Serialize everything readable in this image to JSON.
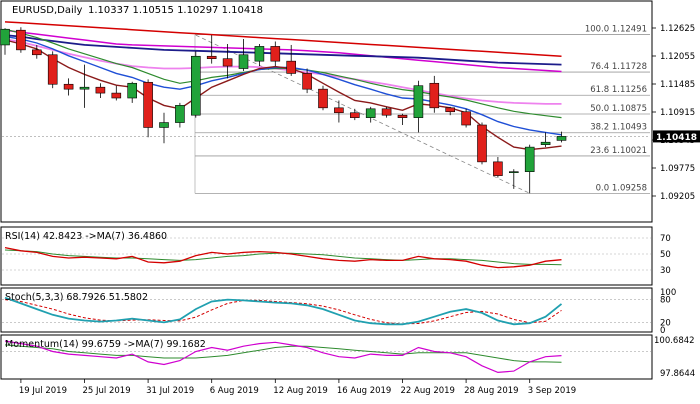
{
  "header": {
    "symbol": "EURUSD,Daily",
    "ohlc": "1.10337 1.10515 1.10297 1.10418"
  },
  "colors": {
    "bull": "#21a33a",
    "bear": "#e0201b",
    "sma_red": "#d40000",
    "sma_navy": "#1c1c8a",
    "sma_magenta": "#d000d0",
    "sma_pink": "#ee82ee",
    "ema_blue": "#1f4fd6",
    "ema_darkred": "#8b1a1a",
    "green_line": "#2e8b2e",
    "fib": "#9a9a9a"
  },
  "price_axis": {
    "ticks": [
      "1.12625",
      "1.12055",
      "1.11485",
      "1.10915",
      "1.10345",
      "1.09775",
      "1.09205"
    ],
    "current_price": "1.10418"
  },
  "fib_levels": [
    {
      "label": "100.0 1.12491",
      "price": 1.12491
    },
    {
      "label": "76.4 1.11728",
      "price": 1.11728
    },
    {
      "label": "61.8 1.11256",
      "price": 1.11256
    },
    {
      "label": "50.0 1.10875",
      "price": 1.10875
    },
    {
      "label": "38.2 1.10493",
      "price": 1.10493
    },
    {
      "label": "23.6 1.10021",
      "price": 1.10021
    },
    {
      "label": "0.0 1.09258",
      "price": 1.09258
    }
  ],
  "date_labels": [
    "19 Jul 2019",
    "25 Jul 2019",
    "31 Jul 2019",
    "6 Aug 2019",
    "12 Aug 2019",
    "16 Aug 2019",
    "22 Aug 2019",
    "28 Aug 2019",
    "3 Sep 2019"
  ],
  "candles": [
    {
      "d": "2019-07-18",
      "o": 1.1228,
      "h": 1.1262,
      "l": 1.1208,
      "c": 1.126
    },
    {
      "d": "2019-07-19",
      "o": 1.1258,
      "h": 1.1264,
      "l": 1.1212,
      "c": 1.1218
    },
    {
      "d": "2019-07-22",
      "o": 1.1218,
      "h": 1.1228,
      "l": 1.12,
      "c": 1.1208
    },
    {
      "d": "2019-07-23",
      "o": 1.1208,
      "h": 1.1215,
      "l": 1.114,
      "c": 1.1148
    },
    {
      "d": "2019-07-24",
      "o": 1.1148,
      "h": 1.116,
      "l": 1.1125,
      "c": 1.1138
    },
    {
      "d": "2019-07-25",
      "o": 1.1138,
      "h": 1.1188,
      "l": 1.11,
      "c": 1.1142
    },
    {
      "d": "2019-07-26",
      "o": 1.1142,
      "h": 1.115,
      "l": 1.112,
      "c": 1.113
    },
    {
      "d": "2019-07-29",
      "o": 1.113,
      "h": 1.1145,
      "l": 1.1115,
      "c": 1.112
    },
    {
      "d": "2019-07-30",
      "o": 1.112,
      "h": 1.1153,
      "l": 1.111,
      "c": 1.115
    },
    {
      "d": "2019-07-31",
      "o": 1.1152,
      "h": 1.1158,
      "l": 1.104,
      "c": 1.106
    },
    {
      "d": "2019-08-01",
      "o": 1.106,
      "h": 1.109,
      "l": 1.1028,
      "c": 1.107
    },
    {
      "d": "2019-08-02",
      "o": 1.107,
      "h": 1.111,
      "l": 1.106,
      "c": 1.1105
    },
    {
      "d": "2019-08-05",
      "o": 1.1085,
      "h": 1.1215,
      "l": 1.108,
      "c": 1.1205
    },
    {
      "d": "2019-08-06",
      "o": 1.1205,
      "h": 1.1248,
      "l": 1.119,
      "c": 1.12
    },
    {
      "d": "2019-08-07",
      "o": 1.12,
      "h": 1.123,
      "l": 1.116,
      "c": 1.1185
    },
    {
      "d": "2019-08-08",
      "o": 1.118,
      "h": 1.124,
      "l": 1.1175,
      "c": 1.1208
    },
    {
      "d": "2019-08-09",
      "o": 1.1195,
      "h": 1.123,
      "l": 1.1185,
      "c": 1.1225
    },
    {
      "d": "2019-08-12",
      "o": 1.1225,
      "h": 1.1235,
      "l": 1.1185,
      "c": 1.1195
    },
    {
      "d": "2019-08-13",
      "o": 1.1195,
      "h": 1.1228,
      "l": 1.1165,
      "c": 1.117
    },
    {
      "d": "2019-08-14",
      "o": 1.117,
      "h": 1.118,
      "l": 1.113,
      "c": 1.1138
    },
    {
      "d": "2019-08-15",
      "o": 1.1138,
      "h": 1.1145,
      "l": 1.1095,
      "c": 1.11
    },
    {
      "d": "2019-08-16",
      "o": 1.11,
      "h": 1.1115,
      "l": 1.107,
      "c": 1.109
    },
    {
      "d": "2019-08-19",
      "o": 1.109,
      "h": 1.1098,
      "l": 1.1075,
      "c": 1.108
    },
    {
      "d": "2019-08-20",
      "o": 1.108,
      "h": 1.1102,
      "l": 1.107,
      "c": 1.1098
    },
    {
      "d": "2019-08-21",
      "o": 1.1098,
      "h": 1.1102,
      "l": 1.108,
      "c": 1.1085
    },
    {
      "d": "2019-08-22",
      "o": 1.1085,
      "h": 1.1088,
      "l": 1.1065,
      "c": 1.108
    },
    {
      "d": "2019-08-23",
      "o": 1.108,
      "h": 1.1155,
      "l": 1.105,
      "c": 1.1145
    },
    {
      "d": "2019-08-26",
      "o": 1.115,
      "h": 1.1165,
      "l": 1.109,
      "c": 1.11
    },
    {
      "d": "2019-08-27",
      "o": 1.11,
      "h": 1.1102,
      "l": 1.1085,
      "c": 1.1092
    },
    {
      "d": "2019-08-28",
      "o": 1.1092,
      "h": 1.1098,
      "l": 1.106,
      "c": 1.1065
    },
    {
      "d": "2019-08-29",
      "o": 1.1065,
      "h": 1.107,
      "l": 1.0985,
      "c": 1.099
    },
    {
      "d": "2019-08-30",
      "o": 1.099,
      "h": 1.1,
      "l": 1.0958,
      "c": 1.0962
    },
    {
      "d": "2019-09-02",
      "o": 1.0968,
      "h": 1.0975,
      "l": 1.0935,
      "c": 1.097
    },
    {
      "d": "2019-09-03",
      "o": 1.097,
      "h": 1.1025,
      "l": 1.0926,
      "c": 1.102
    },
    {
      "d": "2019-09-04",
      "o": 1.1025,
      "h": 1.105,
      "l": 1.102,
      "c": 1.103
    },
    {
      "d": "2019-09-05",
      "o": 1.10337,
      "h": 1.10515,
      "l": 1.10297,
      "c": 1.10418
    }
  ],
  "overlays": {
    "sma_red": [
      1.1275,
      1.1273,
      1.1271,
      1.1269,
      1.1267,
      1.1265,
      1.1263,
      1.1261,
      1.1259,
      1.1257,
      1.1255,
      1.1253,
      1.1251,
      1.1249,
      1.1247,
      1.1245,
      1.1243,
      1.1241,
      1.1239,
      1.1237,
      1.1235,
      1.1233,
      1.1231,
      1.1229,
      1.1227,
      1.1225,
      1.1223,
      1.1221,
      1.1219,
      1.1217,
      1.1215,
      1.1213,
      1.1211,
      1.1209,
      1.1207,
      1.1205
    ],
    "sma_navy": [
      1.1248,
      1.1245,
      1.124,
      1.1236,
      1.1232,
      1.1228,
      1.1226,
      1.1224,
      1.1222,
      1.122,
      1.1218,
      1.1217,
      1.1216,
      1.1215,
      1.1214,
      1.1213,
      1.1212,
      1.1211,
      1.121,
      1.1209,
      1.1208,
      1.1207,
      1.1206,
      1.1205,
      1.1204,
      1.1203,
      1.1202,
      1.12,
      1.1198,
      1.1196,
      1.1194,
      1.1192,
      1.1191,
      1.119,
      1.1189,
      1.1188
    ],
    "sma_magenta": [
      1.1258,
      1.1254,
      1.125,
      1.1246,
      1.1242,
      1.1238,
      1.1234,
      1.123,
      1.1228,
      1.1227,
      1.1226,
      1.1225,
      1.1224,
      1.1223,
      1.1222,
      1.1221,
      1.122,
      1.1219,
      1.1218,
      1.1216,
      1.1214,
      1.1212,
      1.1209,
      1.1206,
      1.1203,
      1.12,
      1.1197,
      1.1194,
      1.1191,
      1.1188,
      1.1185,
      1.1182,
      1.118,
      1.1178,
      1.1176,
      1.1174
    ],
    "sma_pink": [
      1.124,
      1.1234,
      1.1226,
      1.1218,
      1.121,
      1.1203,
      1.1196,
      1.119,
      1.1185,
      1.1182,
      1.118,
      1.118,
      1.1181,
      1.1183,
      1.1184,
      1.1184,
      1.1183,
      1.118,
      1.1176,
      1.1172,
      1.1168,
      1.1163,
      1.1158,
      1.1153,
      1.1148,
      1.1142,
      1.1136,
      1.113,
      1.1124,
      1.1119,
      1.1115,
      1.1112,
      1.111,
      1.1109,
      1.1108,
      1.1108
    ],
    "ema_blue": [
      1.1245,
      1.124,
      1.1232,
      1.122,
      1.1206,
      1.1194,
      1.1182,
      1.117,
      1.1162,
      1.115,
      1.1142,
      1.1138,
      1.1145,
      1.1155,
      1.1162,
      1.117,
      1.1178,
      1.1182,
      1.1182,
      1.1177,
      1.1168,
      1.1158,
      1.1147,
      1.1138,
      1.1128,
      1.112,
      1.1118,
      1.1112,
      1.1106,
      1.1098,
      1.1086,
      1.1072,
      1.1062,
      1.1055,
      1.105,
      1.1045
    ],
    "ema_darkred": [
      1.1238,
      1.123,
      1.122,
      1.12,
      1.1182,
      1.1168,
      1.1156,
      1.1146,
      1.1142,
      1.112,
      1.1105,
      1.1098,
      1.112,
      1.1142,
      1.1155,
      1.1168,
      1.118,
      1.1184,
      1.118,
      1.1168,
      1.115,
      1.1132,
      1.1115,
      1.111,
      1.1102,
      1.1095,
      1.1108,
      1.1105,
      1.11,
      1.109,
      1.1062,
      1.104,
      1.102,
      1.1015,
      1.1018,
      1.1022
    ],
    "green_line": [
      1.126,
      1.1252,
      1.1243,
      1.1232,
      1.122,
      1.121,
      1.12,
      1.119,
      1.1182,
      1.117,
      1.1158,
      1.115,
      1.1155,
      1.1162,
      1.1166,
      1.1172,
      1.1178,
      1.118,
      1.118,
      1.1177,
      1.1172,
      1.1165,
      1.1158,
      1.115,
      1.1143,
      1.1137,
      1.1133,
      1.1127,
      1.1122,
      1.1116,
      1.1108,
      1.11,
      1.1093,
      1.1088,
      1.1084,
      1.108
    ]
  },
  "trendline": {
    "from": {
      "i": 12,
      "price": 1.1248
    },
    "to": {
      "i": 33,
      "price": 1.0926
    }
  },
  "rsi": {
    "label": "RSI(14) 42.8423  ->MA(7) 36.4860",
    "ticks": [
      "70",
      "50",
      "30"
    ],
    "rsi": [
      58,
      54,
      52,
      47,
      45,
      46,
      45,
      44,
      47,
      40,
      39,
      41,
      48,
      52,
      50,
      52,
      53,
      52,
      50,
      47,
      44,
      42,
      41,
      43,
      42,
      42,
      47,
      44,
      43,
      41,
      36,
      33,
      34,
      36,
      41,
      42.84
    ],
    "ma": [
      55,
      54,
      53,
      50,
      48,
      47,
      46,
      45,
      45,
      44,
      43,
      42,
      43,
      45,
      47,
      48,
      50,
      51,
      51,
      50,
      49,
      47,
      45,
      44,
      43,
      42,
      43,
      44,
      44,
      43,
      42,
      40,
      38,
      37,
      37,
      36.49
    ]
  },
  "stoch": {
    "label": "Stoch(5,3,3) 68.7926 51.5802",
    "ticks": [
      "100",
      "80",
      "20",
      "0"
    ],
    "k": [
      85,
      70,
      55,
      40,
      30,
      25,
      22,
      25,
      30,
      25,
      20,
      28,
      55,
      75,
      80,
      78,
      75,
      72,
      70,
      65,
      55,
      40,
      25,
      18,
      15,
      15,
      22,
      35,
      48,
      55,
      45,
      25,
      15,
      18,
      35,
      68.79
    ],
    "d": [
      80,
      75,
      65,
      55,
      42,
      32,
      26,
      24,
      26,
      27,
      25,
      24,
      34,
      53,
      70,
      78,
      78,
      75,
      72,
      69,
      63,
      53,
      40,
      28,
      19,
      16,
      17,
      24,
      35,
      46,
      49,
      42,
      28,
      19,
      23,
      51.58
    ]
  },
  "momentum": {
    "label": "Momentum(14) 99.6759  ->MA(7) 99.1682",
    "ticks": [
      "100.6842",
      "97.8644"
    ],
    "mom": [
      100.8,
      100.6,
      100.4,
      100.0,
      99.8,
      99.7,
      99.6,
      99.5,
      99.8,
      99.2,
      99.0,
      99.3,
      100.0,
      100.3,
      100.1,
      100.4,
      100.6,
      100.7,
      100.5,
      100.3,
      99.9,
      99.6,
      99.5,
      99.8,
      99.7,
      99.7,
      100.3,
      100.0,
      99.9,
      99.6,
      98.9,
      98.4,
      98.5,
      99.2,
      99.6,
      99.68
    ],
    "ma": [
      100.5,
      100.4,
      100.3,
      100.2,
      100.0,
      99.9,
      99.8,
      99.7,
      99.7,
      99.6,
      99.5,
      99.5,
      99.5,
      99.6,
      99.7,
      99.9,
      100.1,
      100.3,
      100.4,
      100.4,
      100.3,
      100.2,
      100.1,
      100.0,
      99.9,
      99.8,
      99.9,
      99.9,
      99.9,
      99.9,
      99.7,
      99.5,
      99.3,
      99.2,
      99.2,
      99.17
    ]
  }
}
